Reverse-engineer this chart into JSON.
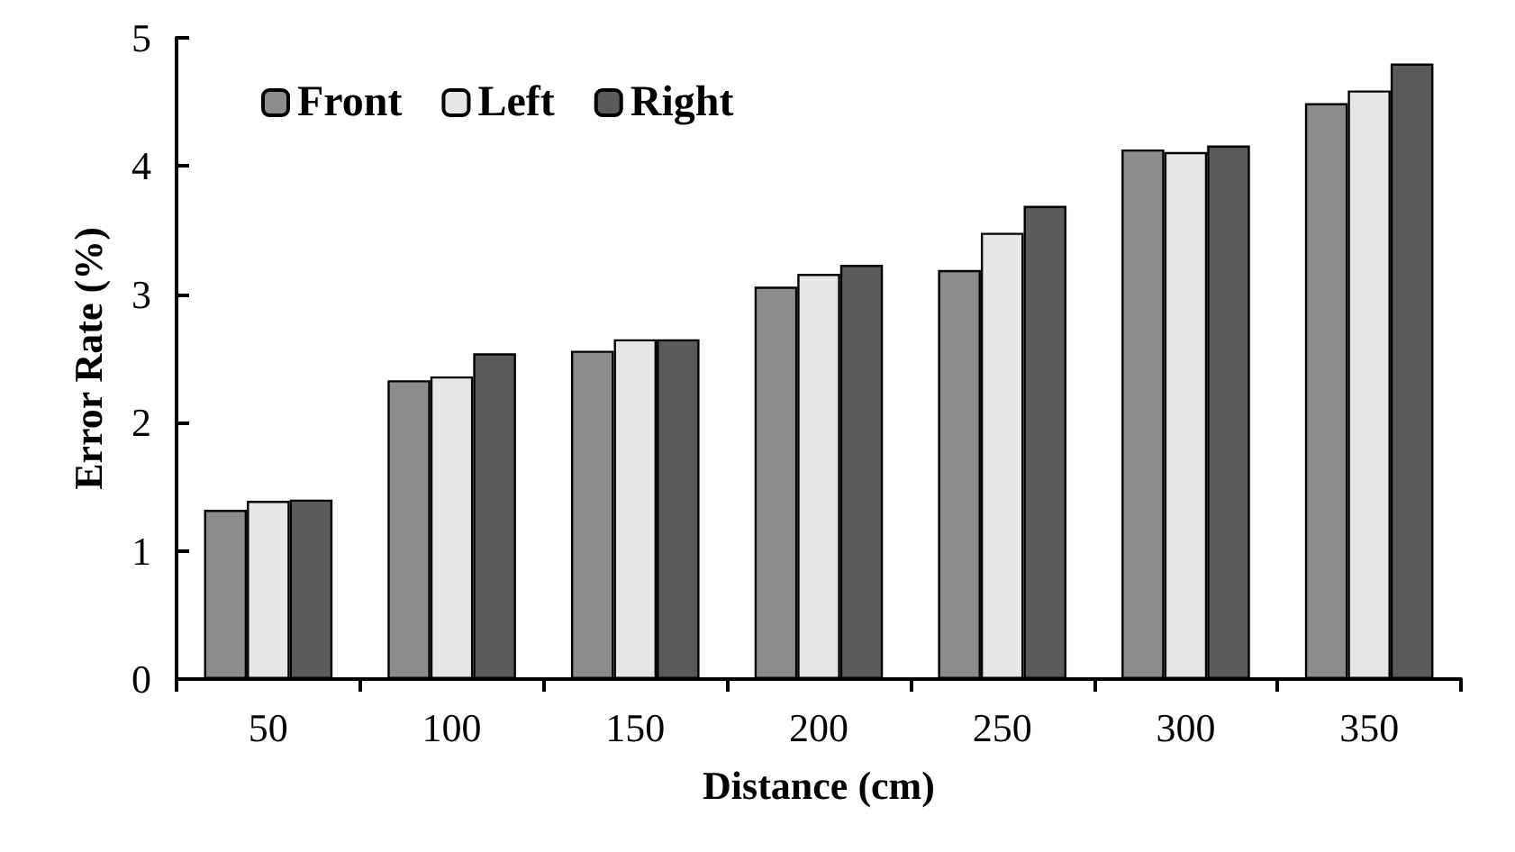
{
  "chart_data": {
    "type": "bar",
    "xlabel": "Distance (cm)",
    "ylabel": "Error Rate (%)",
    "categories": [
      "50",
      "100",
      "150",
      "200",
      "250",
      "300",
      "350"
    ],
    "series": [
      {
        "name": "Front",
        "color": "#8c8c8c",
        "values": [
          1.32,
          2.33,
          2.56,
          3.06,
          3.19,
          4.13,
          4.49
        ]
      },
      {
        "name": "Left",
        "color": "#e6e6e6",
        "values": [
          1.39,
          2.36,
          2.65,
          3.16,
          3.48,
          4.11,
          4.59
        ]
      },
      {
        "name": "Right",
        "color": "#5a5a5a",
        "values": [
          1.4,
          2.54,
          2.65,
          3.23,
          3.69,
          4.16,
          4.8
        ]
      }
    ],
    "ylim": [
      0,
      5
    ],
    "yticks": [
      0,
      1,
      2,
      3,
      4,
      5
    ],
    "grid": false,
    "legend": "top left"
  }
}
